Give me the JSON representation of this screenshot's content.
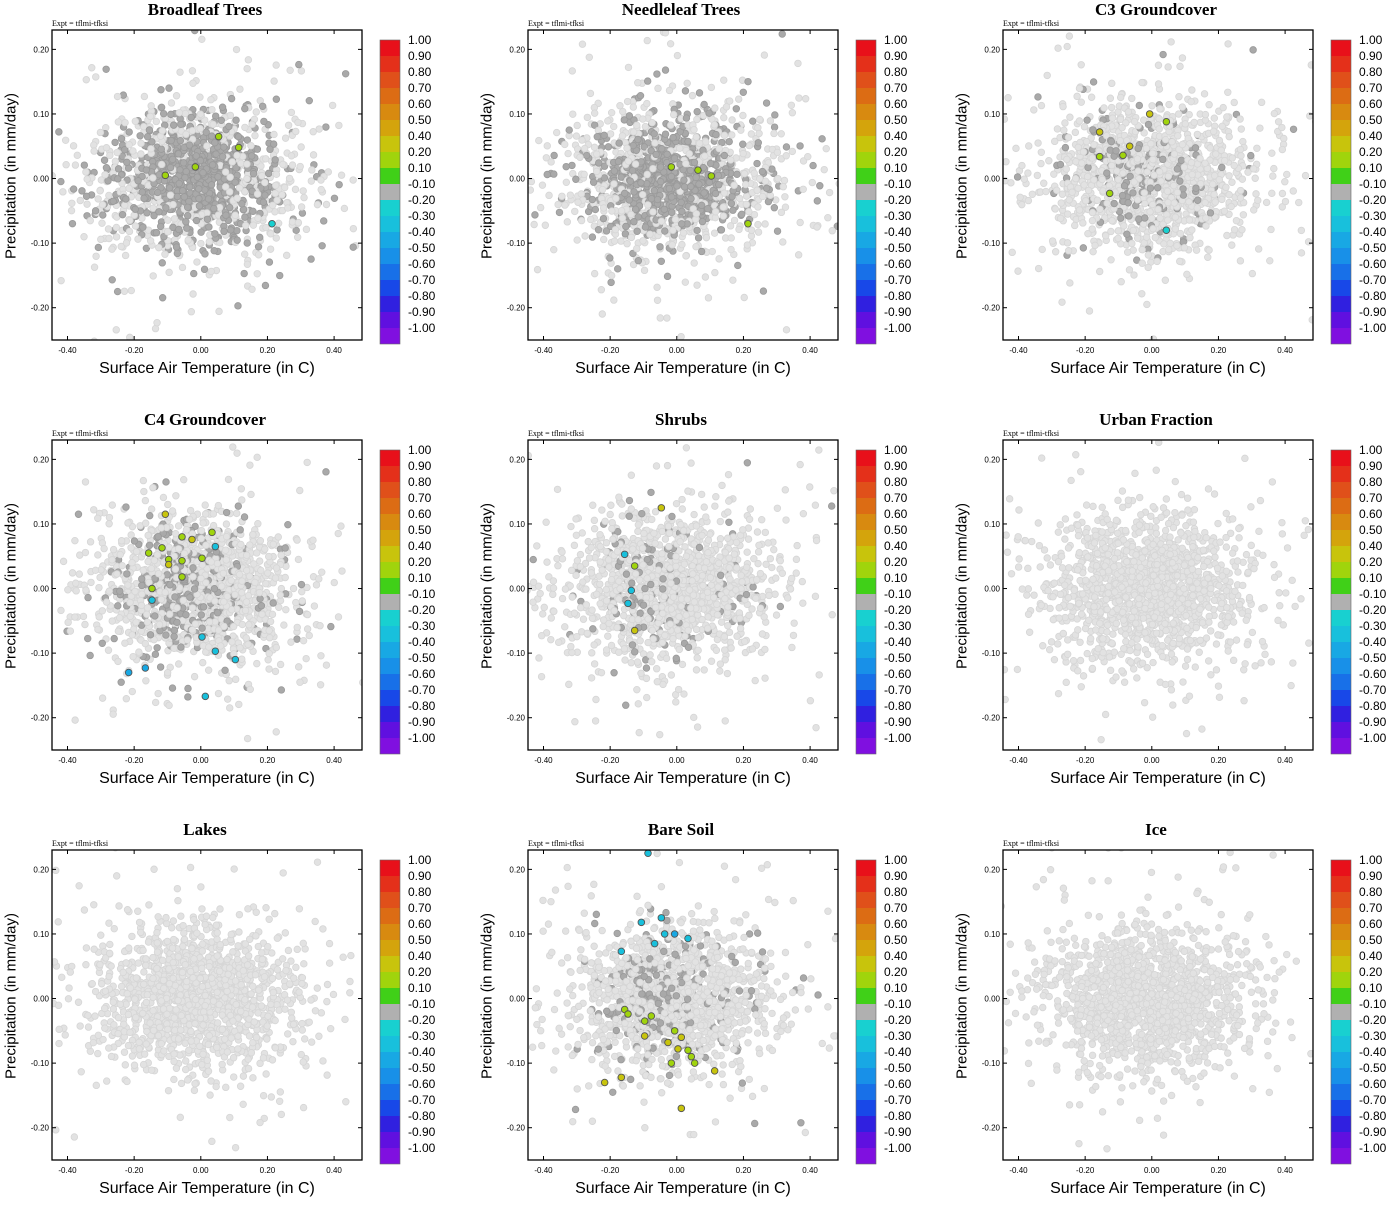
{
  "experiment_label": "Expt = tflmi-tfksi",
  "colorbar": {
    "labels": [
      "1.00",
      "0.90",
      "0.80",
      "0.70",
      "0.60",
      "0.50",
      "0.40",
      "0.20",
      "0.10",
      "-0.10",
      "-0.20",
      "-0.30",
      "-0.40",
      "-0.50",
      "-0.60",
      "-0.70",
      "-0.80",
      "-0.90",
      "-1.00"
    ],
    "colors": [
      "#e8101a",
      "#e4301a",
      "#e0501a",
      "#dc6c14",
      "#d88a10",
      "#d4a40c",
      "#c8c40c",
      "#a0d40c",
      "#40d018",
      "#b0b0b0",
      "#18d0d0",
      "#18c0dc",
      "#18a8e4",
      "#1890e8",
      "#1870e8",
      "#1848e8",
      "#3020e0",
      "#6010e0",
      "#8010e0"
    ]
  },
  "chart_data": [
    {
      "type": "scatter",
      "title": "Broadleaf Trees",
      "xlabel": "Surface Air Temperature (in C)",
      "ylabel": "Precipitation (in mm/day)",
      "xlim": [
        -0.43,
        0.5
      ],
      "ylim": [
        -0.25,
        0.23
      ],
      "xticks": [
        "-0.40",
        "-0.20",
        "0.00",
        "0.20",
        "0.40"
      ],
      "yticks": [
        "0.20",
        "0.10",
        "0.00",
        "-0.10",
        "-0.20"
      ],
      "background": {
        "seed": 17,
        "dark_fraction": 0.82,
        "cx": 0.0,
        "cy": 0.0,
        "sx": 0.12,
        "sy": 0.055
      },
      "highlighted": [
        {
          "x": 0.07,
          "y": 0.065,
          "value": 0.15
        },
        {
          "x": 0.13,
          "y": 0.048,
          "value": 0.15
        },
        {
          "x": 0.0,
          "y": 0.018,
          "value": 0.15
        },
        {
          "x": -0.09,
          "y": 0.005,
          "value": 0.15
        },
        {
          "x": 0.23,
          "y": -0.07,
          "value": -0.2
        }
      ]
    },
    {
      "type": "scatter",
      "title": "Needleleaf Trees",
      "xlabel": "Surface Air Temperature (in C)",
      "ylabel": "Precipitation (in mm/day)",
      "xlim": [
        -0.43,
        0.5
      ],
      "ylim": [
        -0.25,
        0.23
      ],
      "xticks": [
        "-0.40",
        "-0.20",
        "0.00",
        "0.20",
        "0.40"
      ],
      "yticks": [
        "0.20",
        "0.10",
        "0.00",
        "-0.10",
        "-0.20"
      ],
      "background": {
        "seed": 29,
        "dark_fraction": 0.72,
        "cx": 0.0,
        "cy": 0.0,
        "sx": 0.12,
        "sy": 0.055
      },
      "highlighted": [
        {
          "x": 0.0,
          "y": 0.018,
          "value": 0.15
        },
        {
          "x": 0.08,
          "y": 0.013,
          "value": 0.15
        },
        {
          "x": 0.12,
          "y": 0.004,
          "value": 0.15
        },
        {
          "x": 0.23,
          "y": -0.07,
          "value": 0.15
        }
      ]
    },
    {
      "type": "scatter",
      "title": "C3 Groundcover",
      "xlabel": "Surface Air Temperature (in C)",
      "ylabel": "Precipitation (in mm/day)",
      "xlim": [
        -0.43,
        0.5
      ],
      "ylim": [
        -0.25,
        0.23
      ],
      "xticks": [
        "-0.40",
        "-0.20",
        "0.00",
        "0.20",
        "0.40"
      ],
      "yticks": [
        "0.20",
        "0.10",
        "0.00",
        "-0.10",
        "-0.20"
      ],
      "background": {
        "seed": 41,
        "dark_fraction": 0.3,
        "cx": -0.05,
        "cy": 0.0,
        "sx": 0.07,
        "sy": 0.06
      },
      "highlighted": [
        {
          "x": 0.01,
          "y": 0.1,
          "value": 0.3
        },
        {
          "x": 0.06,
          "y": 0.088,
          "value": 0.15
        },
        {
          "x": -0.14,
          "y": 0.072,
          "value": 0.3
        },
        {
          "x": -0.05,
          "y": 0.05,
          "value": 0.3
        },
        {
          "x": -0.07,
          "y": 0.036,
          "value": 0.15
        },
        {
          "x": -0.14,
          "y": 0.034,
          "value": 0.15
        },
        {
          "x": -0.11,
          "y": -0.023,
          "value": 0.15
        },
        {
          "x": 0.06,
          "y": -0.08,
          "value": -0.2
        }
      ]
    },
    {
      "type": "scatter",
      "title": "C4 Groundcover",
      "xlabel": "Surface Air Temperature (in C)",
      "ylabel": "Precipitation (in mm/day)",
      "xlim": [
        -0.43,
        0.5
      ],
      "ylim": [
        -0.25,
        0.23
      ],
      "xticks": [
        "-0.40",
        "-0.20",
        "0.00",
        "0.20",
        "0.40"
      ],
      "yticks": [
        "0.20",
        "0.10",
        "0.00",
        "-0.10",
        "-0.20"
      ],
      "background": {
        "seed": 53,
        "dark_fraction": 0.36,
        "cx": -0.04,
        "cy": 0.0,
        "sx": 0.06,
        "sy": 0.07
      },
      "highlighted": [
        {
          "x": -0.09,
          "y": 0.115,
          "value": 0.3
        },
        {
          "x": 0.05,
          "y": 0.087,
          "value": 0.15
        },
        {
          "x": -0.04,
          "y": 0.08,
          "value": 0.15
        },
        {
          "x": -0.01,
          "y": 0.076,
          "value": 0.3
        },
        {
          "x": -0.1,
          "y": 0.063,
          "value": 0.15
        },
        {
          "x": -0.14,
          "y": 0.055,
          "value": 0.15
        },
        {
          "x": 0.06,
          "y": 0.065,
          "value": -0.3
        },
        {
          "x": -0.08,
          "y": 0.045,
          "value": 0.15
        },
        {
          "x": -0.04,
          "y": 0.043,
          "value": 0.15
        },
        {
          "x": 0.02,
          "y": 0.047,
          "value": 0.15
        },
        {
          "x": -0.08,
          "y": 0.037,
          "value": 0.3
        },
        {
          "x": -0.04,
          "y": 0.018,
          "value": 0.15
        },
        {
          "x": -0.13,
          "y": 0.0,
          "value": 0.15
        },
        {
          "x": -0.13,
          "y": -0.018,
          "value": -0.3
        },
        {
          "x": 0.02,
          "y": -0.075,
          "value": -0.3
        },
        {
          "x": 0.06,
          "y": -0.097,
          "value": -0.3
        },
        {
          "x": 0.12,
          "y": -0.11,
          "value": -0.3
        },
        {
          "x": -0.15,
          "y": -0.123,
          "value": -0.4
        },
        {
          "x": -0.2,
          "y": -0.13,
          "value": -0.4
        },
        {
          "x": 0.03,
          "y": -0.167,
          "value": -0.3
        }
      ]
    },
    {
      "type": "scatter",
      "title": "Shrubs",
      "xlabel": "Surface Air Temperature (in C)",
      "ylabel": "Precipitation (in mm/day)",
      "xlim": [
        -0.43,
        0.5
      ],
      "ylim": [
        -0.25,
        0.23
      ],
      "xticks": [
        "-0.40",
        "-0.20",
        "0.00",
        "0.20",
        "0.40"
      ],
      "yticks": [
        "0.20",
        "0.10",
        "0.00",
        "-0.10",
        "-0.20"
      ],
      "background": {
        "seed": 67,
        "dark_fraction": 0.2,
        "cx": -0.06,
        "cy": 0.01,
        "sx": 0.07,
        "sy": 0.06
      },
      "highlighted": [
        {
          "x": -0.03,
          "y": 0.125,
          "value": 0.3
        },
        {
          "x": -0.14,
          "y": 0.053,
          "value": -0.3
        },
        {
          "x": -0.11,
          "y": 0.035,
          "value": 0.15
        },
        {
          "x": -0.12,
          "y": -0.003,
          "value": -0.3
        },
        {
          "x": -0.13,
          "y": -0.023,
          "value": -0.3
        },
        {
          "x": -0.11,
          "y": -0.065,
          "value": 0.3
        }
      ]
    },
    {
      "type": "scatter",
      "title": "Urban Fraction",
      "xlabel": "Surface Air Temperature (in C)",
      "ylabel": "Precipitation (in mm/day)",
      "xlim": [
        -0.43,
        0.5
      ],
      "ylim": [
        -0.25,
        0.23
      ],
      "xticks": [
        "-0.40",
        "-0.20",
        "0.00",
        "0.20",
        "0.40"
      ],
      "yticks": [
        "0.20",
        "0.10",
        "0.00",
        "-0.10",
        "-0.20"
      ],
      "background": {
        "seed": 79,
        "dark_fraction": 0.0,
        "cx": 0.0,
        "cy": 0.0,
        "sx": 0.12,
        "sy": 0.055
      },
      "highlighted": []
    },
    {
      "type": "scatter",
      "title": "Lakes",
      "xlabel": "Surface Air Temperature (in C)",
      "ylabel": "Precipitation (in mm/day)",
      "xlim": [
        -0.43,
        0.5
      ],
      "ylim": [
        -0.25,
        0.23
      ],
      "xticks": [
        "-0.40",
        "-0.20",
        "0.00",
        "0.20",
        "0.40"
      ],
      "yticks": [
        "0.20",
        "0.10",
        "0.00",
        "-0.10",
        "-0.20"
      ],
      "background": {
        "seed": 83,
        "dark_fraction": 0.0,
        "cx": 0.0,
        "cy": 0.0,
        "sx": 0.12,
        "sy": 0.055
      },
      "highlighted": []
    },
    {
      "type": "scatter",
      "title": "Bare Soil",
      "xlabel": "Surface Air Temperature (in C)",
      "ylabel": "Precipitation (in mm/day)",
      "xlim": [
        -0.43,
        0.5
      ],
      "ylim": [
        -0.25,
        0.23
      ],
      "xticks": [
        "-0.40",
        "-0.20",
        "0.00",
        "0.20",
        "0.40"
      ],
      "yticks": [
        "0.20",
        "0.10",
        "0.00",
        "-0.10",
        "-0.20"
      ],
      "background": {
        "seed": 97,
        "dark_fraction": 0.3,
        "cx": -0.04,
        "cy": 0.0,
        "sx": 0.07,
        "sy": 0.06
      },
      "highlighted": [
        {
          "x": -0.07,
          "y": 0.225,
          "value": -0.3
        },
        {
          "x": -0.03,
          "y": 0.125,
          "value": -0.3
        },
        {
          "x": -0.09,
          "y": 0.118,
          "value": -0.3
        },
        {
          "x": 0.01,
          "y": 0.1,
          "value": -0.4
        },
        {
          "x": -0.02,
          "y": 0.1,
          "value": -0.3
        },
        {
          "x": 0.05,
          "y": 0.093,
          "value": -0.3
        },
        {
          "x": -0.05,
          "y": 0.085,
          "value": -0.3
        },
        {
          "x": -0.15,
          "y": 0.073,
          "value": -0.3
        },
        {
          "x": -0.14,
          "y": -0.017,
          "value": 0.15
        },
        {
          "x": -0.13,
          "y": -0.024,
          "value": 0.15
        },
        {
          "x": -0.06,
          "y": -0.027,
          "value": 0.15
        },
        {
          "x": -0.08,
          "y": -0.035,
          "value": 0.15
        },
        {
          "x": -0.08,
          "y": -0.058,
          "value": 0.3
        },
        {
          "x": 0.01,
          "y": -0.05,
          "value": 0.15
        },
        {
          "x": 0.03,
          "y": -0.06,
          "value": 0.3
        },
        {
          "x": -0.01,
          "y": -0.068,
          "value": 0.3
        },
        {
          "x": 0.02,
          "y": -0.078,
          "value": 0.3
        },
        {
          "x": 0.05,
          "y": -0.08,
          "value": 0.15
        },
        {
          "x": 0.06,
          "y": -0.09,
          "value": 0.15
        },
        {
          "x": 0.07,
          "y": -0.1,
          "value": 0.15
        },
        {
          "x": 0.0,
          "y": -0.1,
          "value": 0.15
        },
        {
          "x": 0.13,
          "y": -0.112,
          "value": 0.3
        },
        {
          "x": -0.15,
          "y": -0.122,
          "value": 0.3
        },
        {
          "x": -0.2,
          "y": -0.13,
          "value": 0.3
        },
        {
          "x": 0.03,
          "y": -0.17,
          "value": 0.3
        }
      ]
    },
    {
      "type": "scatter",
      "title": "Ice",
      "xlabel": "Surface Air Temperature (in C)",
      "ylabel": "Precipitation (in mm/day)",
      "xlim": [
        -0.43,
        0.5
      ],
      "ylim": [
        -0.25,
        0.23
      ],
      "xticks": [
        "-0.40",
        "-0.20",
        "0.00",
        "0.20",
        "0.40"
      ],
      "yticks": [
        "0.20",
        "0.10",
        "0.00",
        "-0.10",
        "-0.20"
      ],
      "background": {
        "seed": 101,
        "dark_fraction": 0.0,
        "cx": 0.0,
        "cy": 0.0,
        "sx": 0.12,
        "sy": 0.055
      },
      "highlighted": []
    }
  ]
}
